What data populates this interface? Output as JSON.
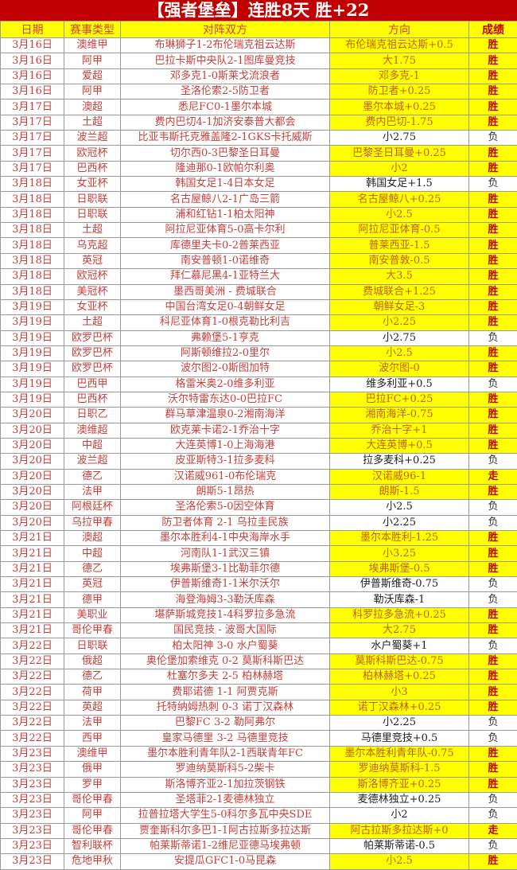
{
  "title": "【强者堡垒】连胜8天  胜+22",
  "colors": {
    "title_bg": "#c00000",
    "highlight": "#ffff00",
    "win_text": "#c00000"
  },
  "columns": [
    "日期",
    "赛事类型",
    "对阵双方",
    "方向",
    "成绩"
  ],
  "rows": [
    [
      "3月16日",
      "澳维甲",
      "布琳狮子1-2布伦瑞克祖云达斯",
      "布伦瑞克祖云达斯+0.5",
      "胜"
    ],
    [
      "3月16日",
      "阿甲",
      "巴拉卡斯中央队2-1图库曼竞技",
      "大1.75",
      "胜"
    ],
    [
      "3月16日",
      "爱超",
      "邓多克1-0斯莱戈流浪者",
      "邓多克-1",
      "胜"
    ],
    [
      "3月16日",
      "阿甲",
      "圣洛伦索2-5防卫者",
      "防卫者+0.25",
      "胜"
    ],
    [
      "3月17日",
      "澳超",
      "悉尼FC0-1墨尔本城",
      "墨尔本城+0.25",
      "胜"
    ],
    [
      "3月17日",
      "土超",
      "费内巴切4-1加济安泰普大都会",
      "费内巴切-1.75",
      "胜"
    ],
    [
      "3月17日",
      "波兰超",
      "比亚韦斯托克雅盖隆2-1GKS卡托威斯",
      "小2.75",
      "负"
    ],
    [
      "3月17日",
      "欧冠杯",
      "切尔西0-3巴黎圣日耳曼",
      "巴黎圣日耳曼+0.25",
      "胜"
    ],
    [
      "3月17日",
      "巴西杯",
      "隆迪那0-1欧帕尔利奥",
      "小2",
      "胜"
    ],
    [
      "3月18日",
      "女亚杯",
      "韩国女足1-4日本女足",
      "韩国女足+1.5",
      "负"
    ],
    [
      "3月18日",
      "日职联",
      "名古屋鲸八2-1广岛三箭",
      "名古屋鲸八+0.25",
      "胜"
    ],
    [
      "3月18日",
      "日职联",
      "浦和红钻1-1柏太阳神",
      "小2.5",
      "胜"
    ],
    [
      "3月18日",
      "土超",
      "阿拉尼亚体育5-0高卡尔利",
      "阿拉尼亚体育-0.5",
      "胜"
    ],
    [
      "3月18日",
      "乌克超",
      "库德里夫卡0-2普莱西亚",
      "普莱西亚-1.5",
      "胜"
    ],
    [
      "3月18日",
      "英冠",
      "南安普顿1-0诺维奇",
      "南安普敦-0.5",
      "胜"
    ],
    [
      "3月18日",
      "欧冠杯",
      "拜仁慕尼黑4-1亚特兰大",
      "大3.5",
      "胜"
    ],
    [
      "3月18日",
      "美冠杯",
      "墨西哥美洲 - 费城联合",
      "费城联合+1.25",
      "胜"
    ],
    [
      "3月19日",
      "女亚杯",
      "中国台湾女足0-4朝鲜女足",
      "朝鲜女足-3",
      "胜"
    ],
    [
      "3月19日",
      "土超",
      "科尼亚体育1-0根克勒比利吉",
      "小2.25",
      "胜"
    ],
    [
      "3月19日",
      "欧罗巴杯",
      "弗赖堡5-1亨克",
      "小2.75",
      "负"
    ],
    [
      "3月19日",
      "欧罗巴杯",
      "阿斯顿维拉2-0里尔",
      "小2.5",
      "胜"
    ],
    [
      "3月19日",
      "欧罗巴杯",
      "波尔图2-0斯图加特",
      "波尔图-0",
      "胜"
    ],
    [
      "3月19日",
      "巴西甲",
      "格雷米奥2-0维多利亚",
      "维多利亚+0.5",
      "负"
    ],
    [
      "3月19日",
      "巴西杯",
      "沃尔特雷东达0-0巴拉FC",
      "巴拉FC+0.25",
      "胜"
    ],
    [
      "3月20日",
      "日职乙",
      "群马草津温泉0-2湘南海洋",
      "湘南海洋-0.75",
      "胜"
    ],
    [
      "3月20日",
      "澳维超",
      "欧克莱卡诺2-1乔治十字",
      "乔治十字+1",
      "胜"
    ],
    [
      "3月20日",
      "中超",
      "大连英博1-0上海海港",
      "大连英博+0.5",
      "胜"
    ],
    [
      "3月20日",
      "波兰超",
      "皮亚斯特3-1拉多麦科",
      "拉多麦科+0.25",
      "负"
    ],
    [
      "3月20日",
      "德乙",
      "汉诺威961-0布伦瑞克",
      "汉诺威96-1",
      "走"
    ],
    [
      "3月20日",
      "法甲",
      "朗斯5-1昂热",
      "朗斯-1.5",
      "胜"
    ],
    [
      "3月20日",
      "阿根廷杯",
      "圣洛伦索5-0因空体育",
      "小2.5",
      "负"
    ],
    [
      "3月20日",
      "乌拉甲春",
      "防卫者体育 2-1 乌拉圭民族",
      "小2.25",
      "负"
    ],
    [
      "3月21日",
      "澳超",
      "墨尔本胜利4-1中央海岸水手",
      "墨尔本胜利-1.25",
      "胜"
    ],
    [
      "3月21日",
      "中超",
      "河南队1-1武汉三镇",
      "小3.25",
      "胜"
    ],
    [
      "3月21日",
      "德乙",
      "埃弗斯堡3-1比勒菲尔德",
      "埃弗斯堡-0.5",
      "胜"
    ],
    [
      "3月21日",
      "英冠",
      "伊普斯维奇1-1米尔沃尔",
      "伊普斯维奇-0.75",
      "负"
    ],
    [
      "3月21日",
      "德甲",
      "海登海姆3-3勒沃库森",
      "勒沃库森-1",
      "负"
    ],
    [
      "3月21日",
      "美职业",
      "堪萨斯城竞技1-4科罗拉多急流",
      "科罗拉多急流+0.25",
      "胜"
    ],
    [
      "3月21日",
      "哥伦甲春",
      "国民竞技 - 波哥大国际",
      "大2.75",
      "胜"
    ],
    [
      "3月22日",
      "日职联",
      "柏太阳神 3-0 水户蜀葵",
      "水户蜀葵+1",
      "负"
    ],
    [
      "3月22日",
      "俄超",
      "奥伦堡加索维克 0-2 莫斯科斯巴达",
      "莫斯科斯巴达-0.75",
      "胜"
    ],
    [
      "3月22日",
      "德乙",
      "杜塞尔多夫 2-5 柏林赫塔",
      "柏林赫塔+0.25",
      "胜"
    ],
    [
      "3月22日",
      "荷甲",
      "费耶诺德 1-1 阿贾克斯",
      "小3",
      "胜"
    ],
    [
      "3月22日",
      "英超",
      "托特纳姆热刺 0-3 诺丁汉森林",
      "诺丁汉森林+0.25",
      "胜"
    ],
    [
      "3月22日",
      "法甲",
      "巴黎FC 3-2 勒阿弗尔",
      "小2.25",
      "负"
    ],
    [
      "3月22日",
      "西甲",
      "皇家马德里 3-2 马德里竞技",
      "马德里竞技+0.5",
      "负"
    ],
    [
      "3月23日",
      "澳维甲",
      "墨尔本胜利青年队2-1西联青年FC",
      "墨尔本胜利青年队-0.75",
      "胜"
    ],
    [
      "3月23日",
      "俄甲",
      "罗迪纳莫斯科5-2柴卡",
      "罗迪纳莫斯科-1.5",
      "胜"
    ],
    [
      "3月23日",
      "罗甲",
      "斯洛博齐亚2-1加拉茨钢铁",
      "斯洛博齐亚+0.25",
      "胜"
    ],
    [
      "3月23日",
      "哥伦甲春",
      "圣塔菲2-1麦德林独立",
      "麦德林独立+0.25",
      "负"
    ],
    [
      "3月23日",
      "阿甲",
      "拉普拉塔大学生5-0科尔多瓦中央SDE",
      "小2",
      "负"
    ],
    [
      "3月23日",
      "哥伦甲春",
      "贾奎斯科尔多巴1-1阿古拉斯多拉达斯",
      "阿古拉斯多拉达斯+0",
      "走"
    ],
    [
      "3月23日",
      "智利联杯",
      "帕莱斯蒂诺1-2维尼亚德马埃弗顿",
      "帕莱斯蒂诺-0.5",
      "负"
    ],
    [
      "3月23日",
      "危地甲秋",
      "安提瓜GFC1-0马昆森",
      "小2.5",
      "胜"
    ]
  ]
}
